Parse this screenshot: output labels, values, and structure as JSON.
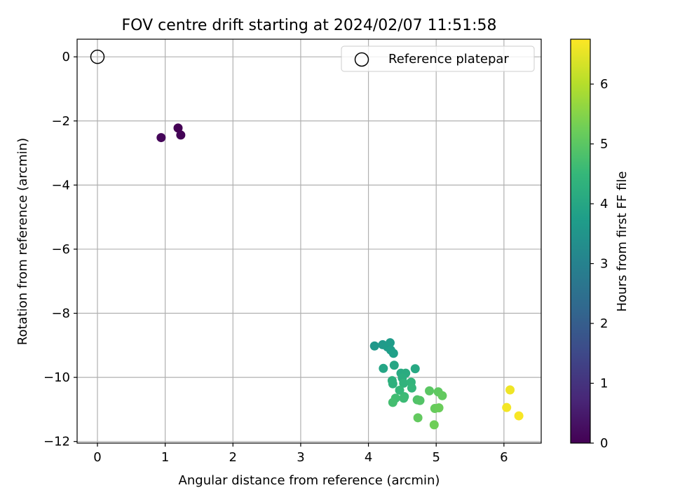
{
  "chart_data": {
    "type": "scatter",
    "title": "FOV centre drift starting at 2024/02/07 11:51:58",
    "xlabel": "Angular distance from reference (arcmin)",
    "ylabel": "Rotation from reference (arcmin)",
    "xlim": [
      -0.3,
      6.55
    ],
    "ylim": [
      -12.05,
      0.55
    ],
    "xticks": [
      0,
      1,
      2,
      3,
      4,
      5,
      6
    ],
    "yticks": [
      0,
      -2,
      -4,
      -6,
      -8,
      -10,
      -12
    ],
    "xtick_labels": [
      "0",
      "1",
      "2",
      "3",
      "4",
      "5",
      "6"
    ],
    "ytick_labels": [
      "0",
      "−2",
      "−4",
      "−6",
      "−8",
      "−10",
      "−12"
    ],
    "grid": true,
    "legend": {
      "placement": "top-right",
      "entries": [
        "Reference platepar"
      ]
    },
    "reference_point": {
      "x": 0,
      "y": 0,
      "label": "Reference platepar"
    },
    "colorbar": {
      "label": "Hours from first FF file",
      "range": [
        0,
        6.75
      ],
      "ticks": [
        0,
        1,
        2,
        3,
        4,
        5,
        6
      ],
      "tick_labels": [
        "0",
        "1",
        "2",
        "3",
        "4",
        "5",
        "6"
      ],
      "colormap": "viridis"
    },
    "points": [
      {
        "x": 1.19,
        "y": -2.22,
        "hours": 0.0
      },
      {
        "x": 1.23,
        "y": -2.44,
        "hours": 0.05
      },
      {
        "x": 0.94,
        "y": -2.52,
        "hours": 0.1
      },
      {
        "x": 4.09,
        "y": -9.02,
        "hours": 3.6
      },
      {
        "x": 4.21,
        "y": -8.98,
        "hours": 3.65
      },
      {
        "x": 4.28,
        "y": -9.05,
        "hours": 3.7
      },
      {
        "x": 4.32,
        "y": -8.92,
        "hours": 3.7
      },
      {
        "x": 4.33,
        "y": -9.15,
        "hours": 3.75
      },
      {
        "x": 4.37,
        "y": -9.25,
        "hours": 3.8
      },
      {
        "x": 4.22,
        "y": -9.72,
        "hours": 3.95
      },
      {
        "x": 4.38,
        "y": -9.62,
        "hours": 4.0
      },
      {
        "x": 4.69,
        "y": -9.73,
        "hours": 4.05
      },
      {
        "x": 4.48,
        "y": -9.87,
        "hours": 4.1
      },
      {
        "x": 4.55,
        "y": -9.87,
        "hours": 4.15
      },
      {
        "x": 4.5,
        "y": -10.02,
        "hours": 4.2
      },
      {
        "x": 4.35,
        "y": -10.1,
        "hours": 4.25
      },
      {
        "x": 4.36,
        "y": -10.2,
        "hours": 4.3
      },
      {
        "x": 4.52,
        "y": -10.18,
        "hours": 4.35
      },
      {
        "x": 4.63,
        "y": -10.15,
        "hours": 4.4
      },
      {
        "x": 4.64,
        "y": -10.33,
        "hours": 4.45
      },
      {
        "x": 4.46,
        "y": -10.4,
        "hours": 4.5
      },
      {
        "x": 4.53,
        "y": -10.6,
        "hours": 4.55
      },
      {
        "x": 4.52,
        "y": -10.65,
        "hours": 4.6
      },
      {
        "x": 4.4,
        "y": -10.65,
        "hours": 4.65
      },
      {
        "x": 4.36,
        "y": -10.78,
        "hours": 4.7
      },
      {
        "x": 4.72,
        "y": -10.7,
        "hours": 4.85
      },
      {
        "x": 4.76,
        "y": -10.72,
        "hours": 4.9
      },
      {
        "x": 4.9,
        "y": -10.42,
        "hours": 5.0
      },
      {
        "x": 5.03,
        "y": -10.45,
        "hours": 5.05
      },
      {
        "x": 5.09,
        "y": -10.57,
        "hours": 5.1
      },
      {
        "x": 4.98,
        "y": -10.97,
        "hours": 5.15
      },
      {
        "x": 5.04,
        "y": -10.95,
        "hours": 5.2
      },
      {
        "x": 4.73,
        "y": -11.26,
        "hours": 5.1
      },
      {
        "x": 4.97,
        "y": -11.48,
        "hours": 5.25
      },
      {
        "x": 6.09,
        "y": -10.39,
        "hours": 6.6
      },
      {
        "x": 6.04,
        "y": -10.94,
        "hours": 6.65
      },
      {
        "x": 6.22,
        "y": -11.2,
        "hours": 6.7
      }
    ]
  }
}
